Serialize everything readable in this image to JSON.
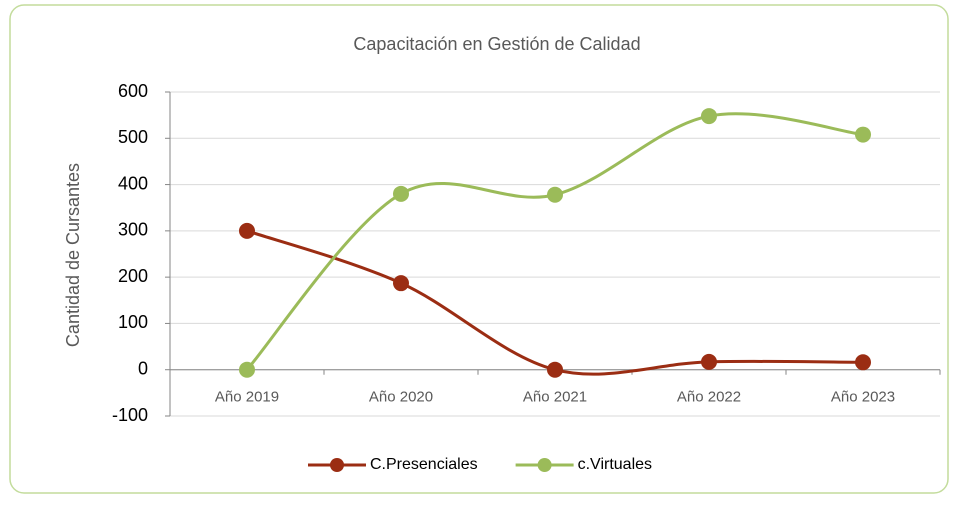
{
  "chart_data": {
    "type": "line",
    "title": "Capacitación en Gestión de Calidad",
    "y_label": "Cantidad de Cursantes",
    "categories": [
      "Año 2019",
      "Año 2020",
      "Año 2021",
      "Año 2022",
      "Año 2023"
    ],
    "series": [
      {
        "name": "C.Presenciales",
        "color": "#9b2d13",
        "values": [
          300,
          187,
          0,
          17,
          16
        ]
      },
      {
        "name": "c.Virtuales",
        "color": "#9bbb59",
        "values": [
          0,
          380,
          378,
          548,
          508
        ]
      }
    ],
    "ylim": [
      -100,
      600
    ],
    "yticks": [
      -100,
      0,
      100,
      200,
      300,
      400,
      500,
      600
    ],
    "grid": true,
    "smooth": true,
    "legend": "bottom"
  }
}
